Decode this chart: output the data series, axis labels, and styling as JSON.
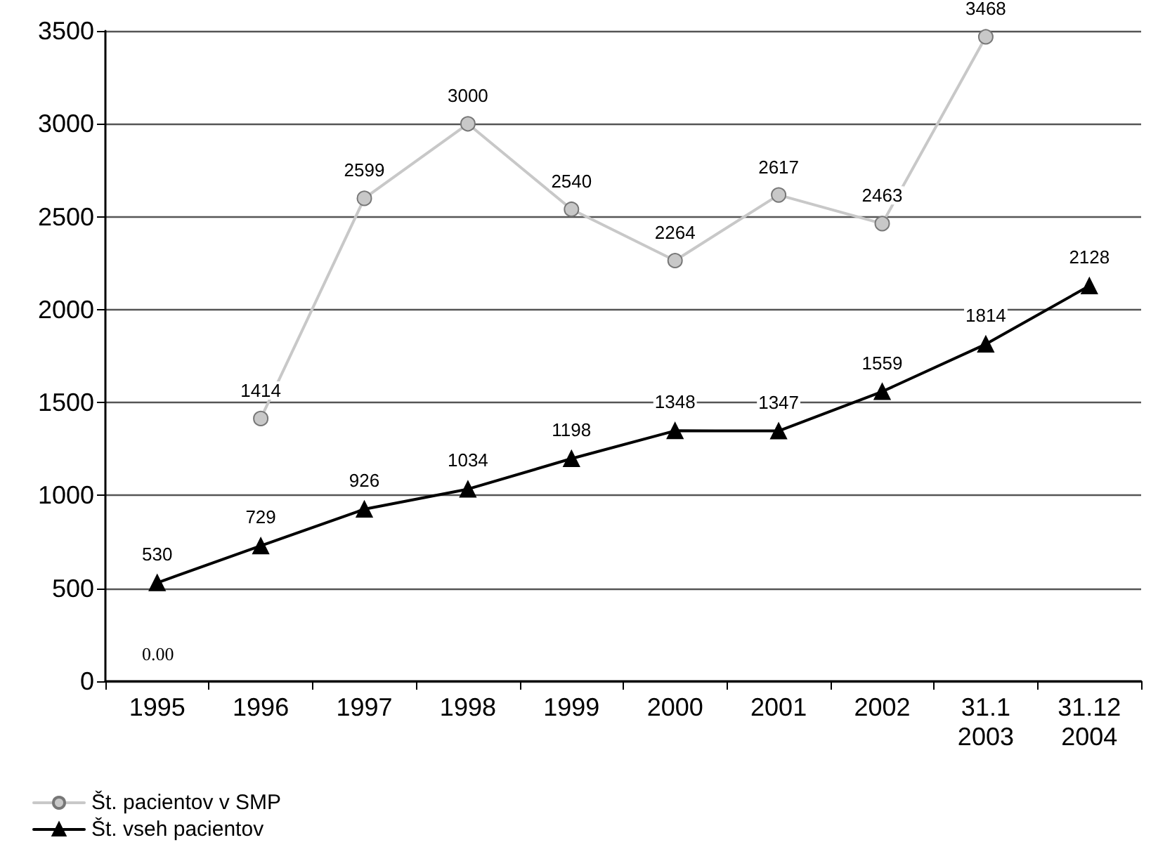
{
  "chart_data": {
    "type": "line",
    "categories": [
      "1995",
      "1996",
      "1997",
      "1998",
      "1999",
      "2000",
      "2001",
      "2002",
      "31.1\n2003",
      "31.12\n2004"
    ],
    "series": [
      {
        "name": "Št. pacientov v SMP",
        "color": "#c8c8c8",
        "marker": "circle",
        "values": [
          null,
          1414,
          2599,
          3000,
          2540,
          2264,
          2617,
          2463,
          3468,
          null
        ]
      },
      {
        "name": "Št. vseh pacientov",
        "color": "#000000",
        "marker": "triangle",
        "values": [
          530,
          729,
          926,
          1034,
          1198,
          1348,
          1347,
          1559,
          1814,
          2128
        ]
      }
    ],
    "ylim": [
      0,
      3500
    ],
    "yticks": [
      0,
      500,
      1000,
      1500,
      2000,
      2500,
      3000,
      3500
    ],
    "grid": "y",
    "legend": "bottom left",
    "data_labels": true,
    "line_style": "solid",
    "annotations": [
      "0.00"
    ]
  }
}
